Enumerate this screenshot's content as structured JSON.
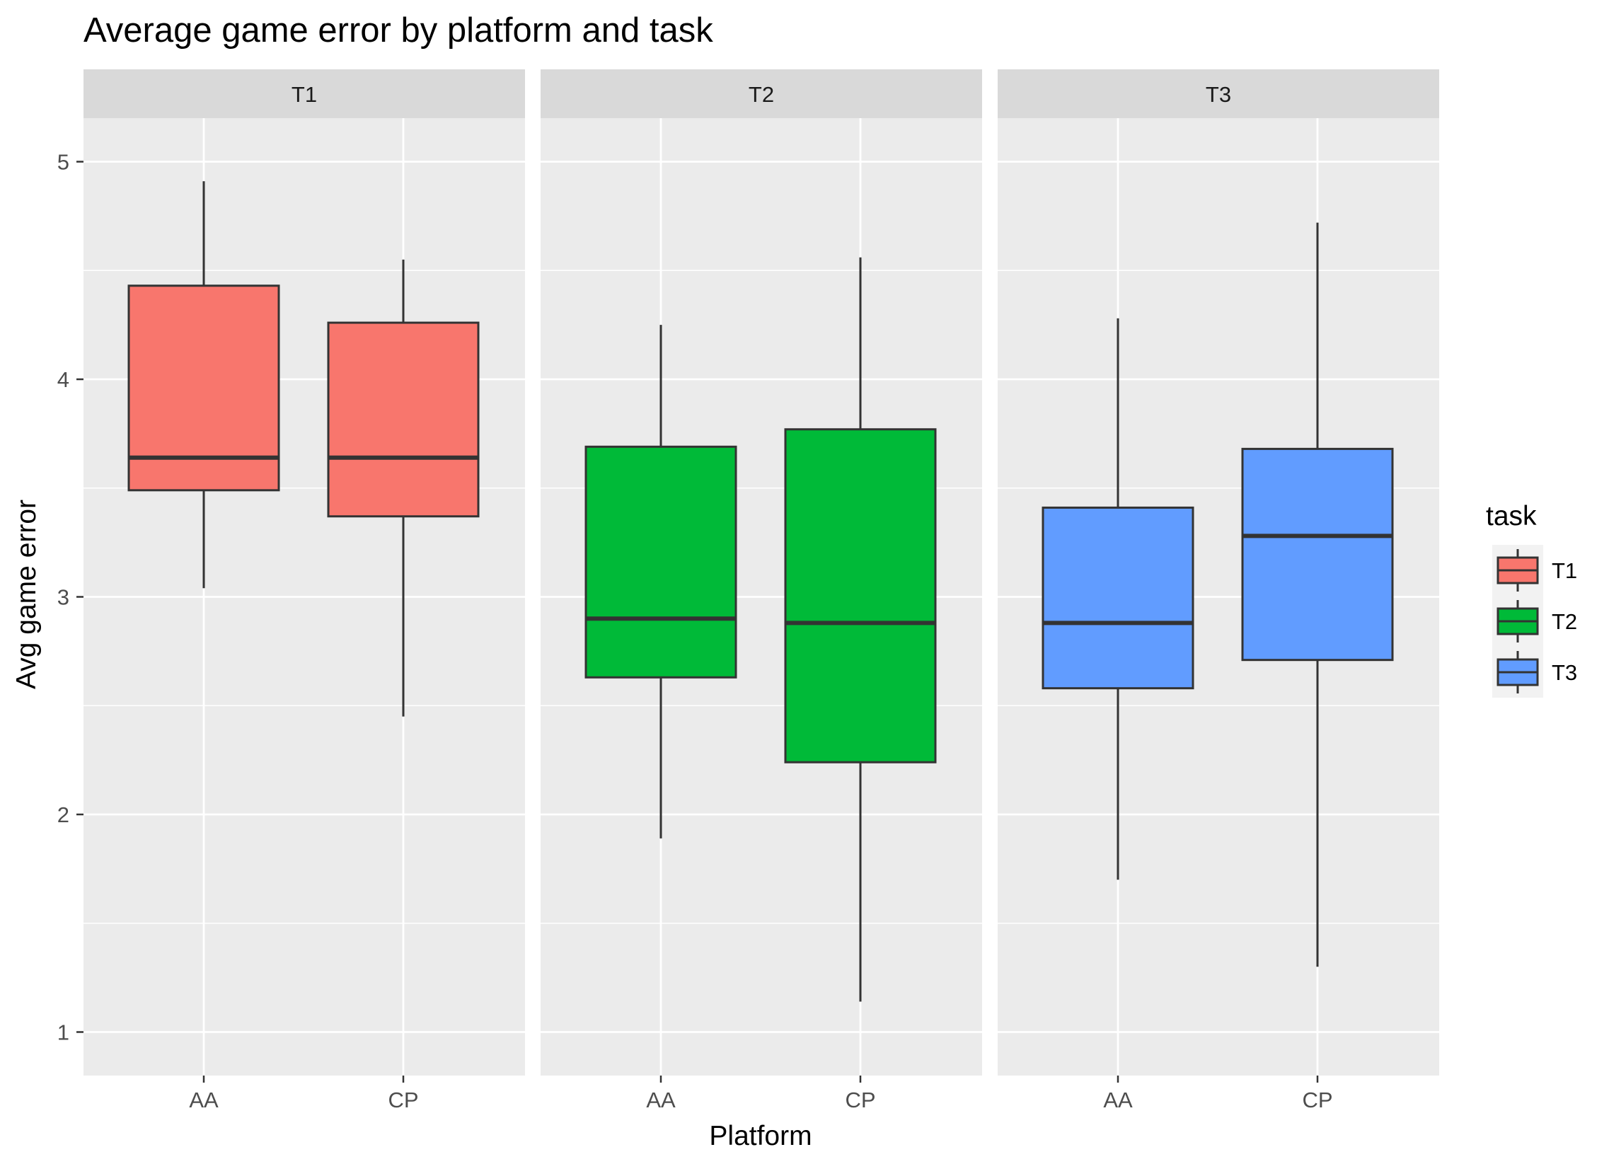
{
  "chart_data": {
    "type": "boxplot",
    "title": "Average game error by platform and task",
    "xlabel": "Platform",
    "ylabel": "Avg game error",
    "ylim": [
      0.8,
      5.2
    ],
    "yticks": [
      1,
      2,
      3,
      4,
      5
    ],
    "categories": [
      "AA",
      "CP"
    ],
    "grid": true,
    "legend": {
      "title": "task",
      "placement": "right",
      "items": [
        {
          "label": "T1",
          "color": "#F8766D"
        },
        {
          "label": "T2",
          "color": "#00BA38"
        },
        {
          "label": "T3",
          "color": "#619CFF"
        }
      ]
    },
    "facets": [
      {
        "label": "T1",
        "color": "#F8766D",
        "boxes": [
          {
            "category": "AA",
            "min": 3.04,
            "q1": 3.49,
            "median": 3.64,
            "q3": 4.43,
            "max": 4.91
          },
          {
            "category": "CP",
            "min": 2.45,
            "q1": 3.37,
            "median": 3.64,
            "q3": 4.26,
            "max": 4.55
          }
        ]
      },
      {
        "label": "T2",
        "color": "#00BA38",
        "boxes": [
          {
            "category": "AA",
            "min": 1.89,
            "q1": 2.63,
            "median": 2.9,
            "q3": 3.69,
            "max": 4.25
          },
          {
            "category": "CP",
            "min": 1.14,
            "q1": 2.24,
            "median": 2.88,
            "q3": 3.77,
            "max": 4.56
          }
        ]
      },
      {
        "label": "T3",
        "color": "#619CFF",
        "boxes": [
          {
            "category": "AA",
            "min": 1.7,
            "q1": 2.58,
            "median": 2.88,
            "q3": 3.41,
            "max": 4.28
          },
          {
            "category": "CP",
            "min": 1.3,
            "q1": 2.71,
            "median": 3.28,
            "q3": 3.68,
            "max": 4.72
          }
        ]
      }
    ]
  }
}
